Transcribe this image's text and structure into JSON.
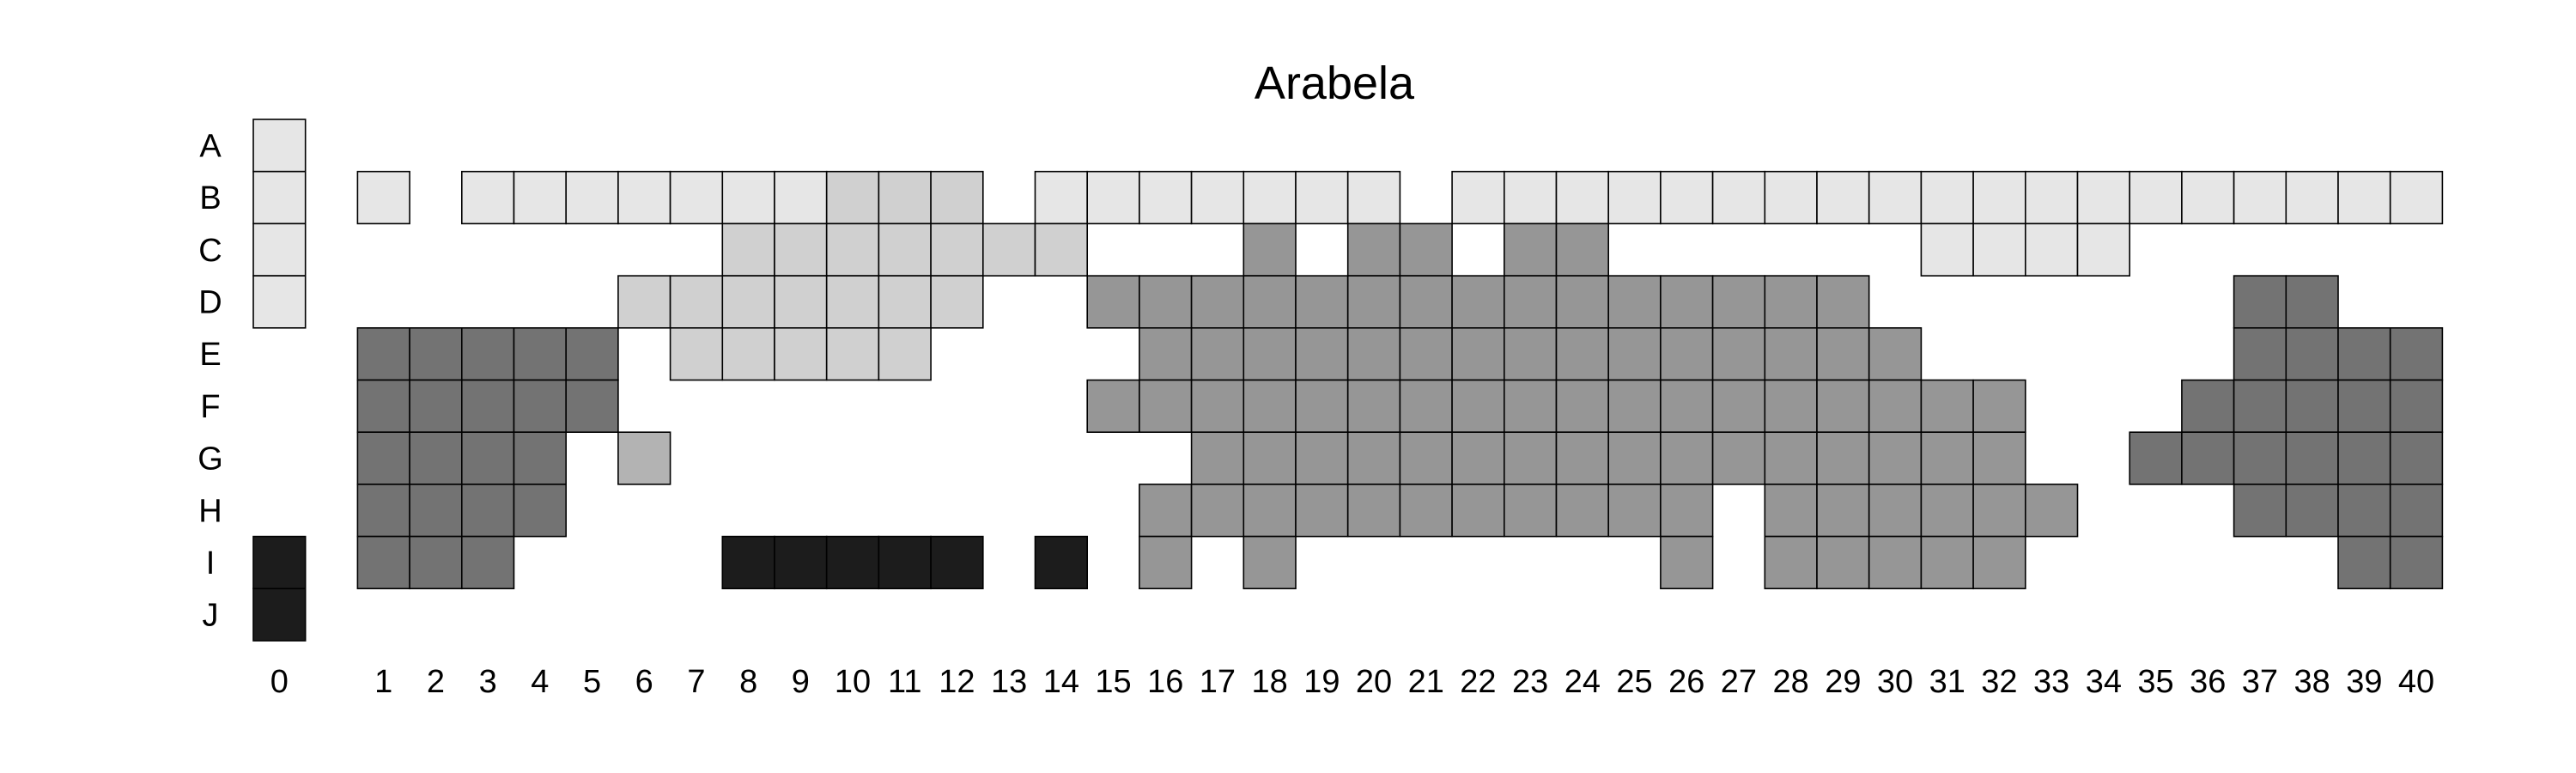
{
  "chart_data": {
    "type": "heatmap",
    "title": "Arabela",
    "rows": [
      "A",
      "B",
      "C",
      "D",
      "E",
      "F",
      "G",
      "H",
      "I",
      "J"
    ],
    "columns": [
      "0",
      "1",
      "2",
      "3",
      "4",
      "5",
      "6",
      "7",
      "8",
      "9",
      "10",
      "11",
      "12",
      "13",
      "14",
      "15",
      "16",
      "17",
      "18",
      "19",
      "20",
      "21",
      "22",
      "23",
      "24",
      "25",
      "26",
      "27",
      "28",
      "29",
      "30",
      "31",
      "32",
      "33",
      "34",
      "35",
      "36",
      "37",
      "38",
      "39",
      "40"
    ],
    "shade_colors": {
      "1": "#e6e6e6",
      "2": "#d0d0d0",
      "3": "#b3b3b3",
      "4": "#969696",
      "5": "#737373",
      "6": "#1c1c1c"
    },
    "cells": [
      {
        "row": "A",
        "col": 0,
        "shade": 1
      },
      {
        "row": "B",
        "col": 0,
        "shade": 1
      },
      {
        "row": "B",
        "col": 1,
        "shade": 1
      },
      {
        "row": "B",
        "col": 3,
        "shade": 1
      },
      {
        "row": "B",
        "col": 4,
        "shade": 1
      },
      {
        "row": "B",
        "col": 5,
        "shade": 1
      },
      {
        "row": "B",
        "col": 6,
        "shade": 1
      },
      {
        "row": "B",
        "col": 7,
        "shade": 1
      },
      {
        "row": "B",
        "col": 8,
        "shade": 1
      },
      {
        "row": "B",
        "col": 9,
        "shade": 1
      },
      {
        "row": "B",
        "col": 10,
        "shade": 2
      },
      {
        "row": "B",
        "col": 11,
        "shade": 2
      },
      {
        "row": "B",
        "col": 12,
        "shade": 2
      },
      {
        "row": "B",
        "col": 14,
        "shade": 1
      },
      {
        "row": "B",
        "col": 15,
        "shade": 1
      },
      {
        "row": "B",
        "col": 16,
        "shade": 1
      },
      {
        "row": "B",
        "col": 17,
        "shade": 1
      },
      {
        "row": "B",
        "col": 18,
        "shade": 1
      },
      {
        "row": "B",
        "col": 19,
        "shade": 1
      },
      {
        "row": "B",
        "col": 20,
        "shade": 1
      },
      {
        "row": "B",
        "col": 22,
        "shade": 1
      },
      {
        "row": "B",
        "col": 23,
        "shade": 1
      },
      {
        "row": "B",
        "col": 24,
        "shade": 1
      },
      {
        "row": "B",
        "col": 25,
        "shade": 1
      },
      {
        "row": "B",
        "col": 26,
        "shade": 1
      },
      {
        "row": "B",
        "col": 27,
        "shade": 1
      },
      {
        "row": "B",
        "col": 28,
        "shade": 1
      },
      {
        "row": "B",
        "col": 29,
        "shade": 1
      },
      {
        "row": "B",
        "col": 30,
        "shade": 1
      },
      {
        "row": "B",
        "col": 31,
        "shade": 1
      },
      {
        "row": "B",
        "col": 32,
        "shade": 1
      },
      {
        "row": "B",
        "col": 33,
        "shade": 1
      },
      {
        "row": "B",
        "col": 34,
        "shade": 1
      },
      {
        "row": "B",
        "col": 35,
        "shade": 1
      },
      {
        "row": "B",
        "col": 36,
        "shade": 1
      },
      {
        "row": "B",
        "col": 37,
        "shade": 1
      },
      {
        "row": "B",
        "col": 38,
        "shade": 1
      },
      {
        "row": "B",
        "col": 39,
        "shade": 1
      },
      {
        "row": "B",
        "col": 40,
        "shade": 1
      },
      {
        "row": "C",
        "col": 0,
        "shade": 1
      },
      {
        "row": "C",
        "col": 8,
        "shade": 2
      },
      {
        "row": "C",
        "col": 9,
        "shade": 2
      },
      {
        "row": "C",
        "col": 10,
        "shade": 2
      },
      {
        "row": "C",
        "col": 11,
        "shade": 2
      },
      {
        "row": "C",
        "col": 12,
        "shade": 2
      },
      {
        "row": "C",
        "col": 13,
        "shade": 2
      },
      {
        "row": "C",
        "col": 14,
        "shade": 2
      },
      {
        "row": "C",
        "col": 18,
        "shade": 4
      },
      {
        "row": "C",
        "col": 20,
        "shade": 4
      },
      {
        "row": "C",
        "col": 21,
        "shade": 4
      },
      {
        "row": "C",
        "col": 23,
        "shade": 4
      },
      {
        "row": "C",
        "col": 24,
        "shade": 4
      },
      {
        "row": "C",
        "col": 31,
        "shade": 1
      },
      {
        "row": "C",
        "col": 32,
        "shade": 1
      },
      {
        "row": "C",
        "col": 33,
        "shade": 1
      },
      {
        "row": "C",
        "col": 34,
        "shade": 1
      },
      {
        "row": "D",
        "col": 0,
        "shade": 1
      },
      {
        "row": "D",
        "col": 6,
        "shade": 2
      },
      {
        "row": "D",
        "col": 7,
        "shade": 2
      },
      {
        "row": "D",
        "col": 8,
        "shade": 2
      },
      {
        "row": "D",
        "col": 9,
        "shade": 2
      },
      {
        "row": "D",
        "col": 10,
        "shade": 2
      },
      {
        "row": "D",
        "col": 11,
        "shade": 2
      },
      {
        "row": "D",
        "col": 12,
        "shade": 2
      },
      {
        "row": "D",
        "col": 15,
        "shade": 4
      },
      {
        "row": "D",
        "col": 16,
        "shade": 4
      },
      {
        "row": "D",
        "col": 17,
        "shade": 4
      },
      {
        "row": "D",
        "col": 18,
        "shade": 4
      },
      {
        "row": "D",
        "col": 19,
        "shade": 4
      },
      {
        "row": "D",
        "col": 20,
        "shade": 4
      },
      {
        "row": "D",
        "col": 21,
        "shade": 4
      },
      {
        "row": "D",
        "col": 22,
        "shade": 4
      },
      {
        "row": "D",
        "col": 23,
        "shade": 4
      },
      {
        "row": "D",
        "col": 24,
        "shade": 4
      },
      {
        "row": "D",
        "col": 25,
        "shade": 4
      },
      {
        "row": "D",
        "col": 26,
        "shade": 4
      },
      {
        "row": "D",
        "col": 27,
        "shade": 4
      },
      {
        "row": "D",
        "col": 28,
        "shade": 4
      },
      {
        "row": "D",
        "col": 29,
        "shade": 4
      },
      {
        "row": "D",
        "col": 37,
        "shade": 5
      },
      {
        "row": "D",
        "col": 38,
        "shade": 5
      },
      {
        "row": "E",
        "col": 1,
        "shade": 5
      },
      {
        "row": "E",
        "col": 2,
        "shade": 5
      },
      {
        "row": "E",
        "col": 3,
        "shade": 5
      },
      {
        "row": "E",
        "col": 4,
        "shade": 5
      },
      {
        "row": "E",
        "col": 5,
        "shade": 5
      },
      {
        "row": "E",
        "col": 7,
        "shade": 2
      },
      {
        "row": "E",
        "col": 8,
        "shade": 2
      },
      {
        "row": "E",
        "col": 9,
        "shade": 2
      },
      {
        "row": "E",
        "col": 10,
        "shade": 2
      },
      {
        "row": "E",
        "col": 11,
        "shade": 2
      },
      {
        "row": "E",
        "col": 16,
        "shade": 4
      },
      {
        "row": "E",
        "col": 17,
        "shade": 4
      },
      {
        "row": "E",
        "col": 18,
        "shade": 4
      },
      {
        "row": "E",
        "col": 19,
        "shade": 4
      },
      {
        "row": "E",
        "col": 20,
        "shade": 4
      },
      {
        "row": "E",
        "col": 21,
        "shade": 4
      },
      {
        "row": "E",
        "col": 22,
        "shade": 4
      },
      {
        "row": "E",
        "col": 23,
        "shade": 4
      },
      {
        "row": "E",
        "col": 24,
        "shade": 4
      },
      {
        "row": "E",
        "col": 25,
        "shade": 4
      },
      {
        "row": "E",
        "col": 26,
        "shade": 4
      },
      {
        "row": "E",
        "col": 27,
        "shade": 4
      },
      {
        "row": "E",
        "col": 28,
        "shade": 4
      },
      {
        "row": "E",
        "col": 29,
        "shade": 4
      },
      {
        "row": "E",
        "col": 30,
        "shade": 4
      },
      {
        "row": "E",
        "col": 37,
        "shade": 5
      },
      {
        "row": "E",
        "col": 38,
        "shade": 5
      },
      {
        "row": "E",
        "col": 39,
        "shade": 5
      },
      {
        "row": "E",
        "col": 40,
        "shade": 5
      },
      {
        "row": "F",
        "col": 1,
        "shade": 5
      },
      {
        "row": "F",
        "col": 2,
        "shade": 5
      },
      {
        "row": "F",
        "col": 3,
        "shade": 5
      },
      {
        "row": "F",
        "col": 4,
        "shade": 5
      },
      {
        "row": "F",
        "col": 5,
        "shade": 5
      },
      {
        "row": "F",
        "col": 15,
        "shade": 4
      },
      {
        "row": "F",
        "col": 16,
        "shade": 4
      },
      {
        "row": "F",
        "col": 17,
        "shade": 4
      },
      {
        "row": "F",
        "col": 18,
        "shade": 4
      },
      {
        "row": "F",
        "col": 19,
        "shade": 4
      },
      {
        "row": "F",
        "col": 20,
        "shade": 4
      },
      {
        "row": "F",
        "col": 21,
        "shade": 4
      },
      {
        "row": "F",
        "col": 22,
        "shade": 4
      },
      {
        "row": "F",
        "col": 23,
        "shade": 4
      },
      {
        "row": "F",
        "col": 24,
        "shade": 4
      },
      {
        "row": "F",
        "col": 25,
        "shade": 4
      },
      {
        "row": "F",
        "col": 26,
        "shade": 4
      },
      {
        "row": "F",
        "col": 27,
        "shade": 4
      },
      {
        "row": "F",
        "col": 28,
        "shade": 4
      },
      {
        "row": "F",
        "col": 29,
        "shade": 4
      },
      {
        "row": "F",
        "col": 30,
        "shade": 4
      },
      {
        "row": "F",
        "col": 31,
        "shade": 4
      },
      {
        "row": "F",
        "col": 32,
        "shade": 4
      },
      {
        "row": "F",
        "col": 36,
        "shade": 5
      },
      {
        "row": "F",
        "col": 37,
        "shade": 5
      },
      {
        "row": "F",
        "col": 38,
        "shade": 5
      },
      {
        "row": "F",
        "col": 39,
        "shade": 5
      },
      {
        "row": "F",
        "col": 40,
        "shade": 5
      },
      {
        "row": "G",
        "col": 1,
        "shade": 5
      },
      {
        "row": "G",
        "col": 2,
        "shade": 5
      },
      {
        "row": "G",
        "col": 3,
        "shade": 5
      },
      {
        "row": "G",
        "col": 4,
        "shade": 5
      },
      {
        "row": "G",
        "col": 6,
        "shade": 3
      },
      {
        "row": "G",
        "col": 17,
        "shade": 4
      },
      {
        "row": "G",
        "col": 18,
        "shade": 4
      },
      {
        "row": "G",
        "col": 19,
        "shade": 4
      },
      {
        "row": "G",
        "col": 20,
        "shade": 4
      },
      {
        "row": "G",
        "col": 21,
        "shade": 4
      },
      {
        "row": "G",
        "col": 22,
        "shade": 4
      },
      {
        "row": "G",
        "col": 23,
        "shade": 4
      },
      {
        "row": "G",
        "col": 24,
        "shade": 4
      },
      {
        "row": "G",
        "col": 25,
        "shade": 4
      },
      {
        "row": "G",
        "col": 26,
        "shade": 4
      },
      {
        "row": "G",
        "col": 27,
        "shade": 4
      },
      {
        "row": "G",
        "col": 28,
        "shade": 4
      },
      {
        "row": "G",
        "col": 29,
        "shade": 4
      },
      {
        "row": "G",
        "col": 30,
        "shade": 4
      },
      {
        "row": "G",
        "col": 31,
        "shade": 4
      },
      {
        "row": "G",
        "col": 32,
        "shade": 4
      },
      {
        "row": "G",
        "col": 35,
        "shade": 5
      },
      {
        "row": "G",
        "col": 36,
        "shade": 5
      },
      {
        "row": "G",
        "col": 37,
        "shade": 5
      },
      {
        "row": "G",
        "col": 38,
        "shade": 5
      },
      {
        "row": "G",
        "col": 39,
        "shade": 5
      },
      {
        "row": "G",
        "col": 40,
        "shade": 5
      },
      {
        "row": "H",
        "col": 1,
        "shade": 5
      },
      {
        "row": "H",
        "col": 2,
        "shade": 5
      },
      {
        "row": "H",
        "col": 3,
        "shade": 5
      },
      {
        "row": "H",
        "col": 4,
        "shade": 5
      },
      {
        "row": "H",
        "col": 16,
        "shade": 4
      },
      {
        "row": "H",
        "col": 17,
        "shade": 4
      },
      {
        "row": "H",
        "col": 18,
        "shade": 4
      },
      {
        "row": "H",
        "col": 19,
        "shade": 4
      },
      {
        "row": "H",
        "col": 20,
        "shade": 4
      },
      {
        "row": "H",
        "col": 21,
        "shade": 4
      },
      {
        "row": "H",
        "col": 22,
        "shade": 4
      },
      {
        "row": "H",
        "col": 23,
        "shade": 4
      },
      {
        "row": "H",
        "col": 24,
        "shade": 4
      },
      {
        "row": "H",
        "col": 25,
        "shade": 4
      },
      {
        "row": "H",
        "col": 26,
        "shade": 4
      },
      {
        "row": "H",
        "col": 28,
        "shade": 4
      },
      {
        "row": "H",
        "col": 29,
        "shade": 4
      },
      {
        "row": "H",
        "col": 30,
        "shade": 4
      },
      {
        "row": "H",
        "col": 31,
        "shade": 4
      },
      {
        "row": "H",
        "col": 32,
        "shade": 4
      },
      {
        "row": "H",
        "col": 33,
        "shade": 4
      },
      {
        "row": "H",
        "col": 37,
        "shade": 5
      },
      {
        "row": "H",
        "col": 38,
        "shade": 5
      },
      {
        "row": "H",
        "col": 39,
        "shade": 5
      },
      {
        "row": "H",
        "col": 40,
        "shade": 5
      },
      {
        "row": "I",
        "col": 0,
        "shade": 6
      },
      {
        "row": "I",
        "col": 1,
        "shade": 5
      },
      {
        "row": "I",
        "col": 2,
        "shade": 5
      },
      {
        "row": "I",
        "col": 3,
        "shade": 5
      },
      {
        "row": "I",
        "col": 8,
        "shade": 6
      },
      {
        "row": "I",
        "col": 9,
        "shade": 6
      },
      {
        "row": "I",
        "col": 10,
        "shade": 6
      },
      {
        "row": "I",
        "col": 11,
        "shade": 6
      },
      {
        "row": "I",
        "col": 12,
        "shade": 6
      },
      {
        "row": "I",
        "col": 14,
        "shade": 6
      },
      {
        "row": "I",
        "col": 16,
        "shade": 4
      },
      {
        "row": "I",
        "col": 18,
        "shade": 4
      },
      {
        "row": "I",
        "col": 26,
        "shade": 4
      },
      {
        "row": "I",
        "col": 28,
        "shade": 4
      },
      {
        "row": "I",
        "col": 29,
        "shade": 4
      },
      {
        "row": "I",
        "col": 30,
        "shade": 4
      },
      {
        "row": "I",
        "col": 31,
        "shade": 4
      },
      {
        "row": "I",
        "col": 32,
        "shade": 4
      },
      {
        "row": "I",
        "col": 39,
        "shade": 5
      },
      {
        "row": "I",
        "col": 40,
        "shade": 5
      },
      {
        "row": "J",
        "col": 0,
        "shade": 6
      }
    ]
  }
}
